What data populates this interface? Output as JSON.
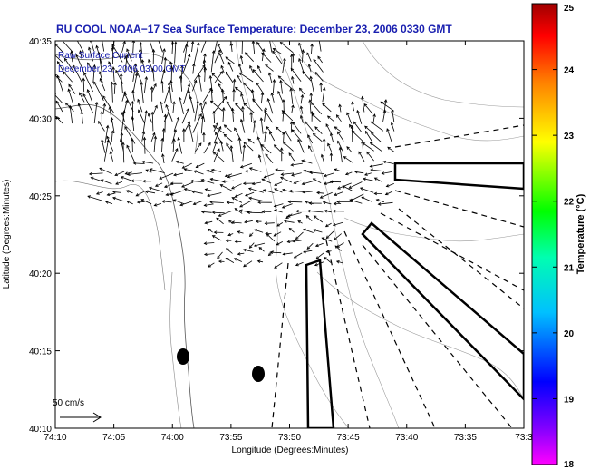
{
  "chart_data": {
    "type": "map",
    "title": "RU COOL  NOAA−17  Sea Surface Temperature:  December 23, 2006 0330 GMT",
    "overlay_title": "Raw Surface Current",
    "overlay_time": "December 23, 2006 03:00 GMT",
    "xlabel": "Longitude (Degrees:Minutes)",
    "ylabel": "Latitude (Degrees:Minutes)",
    "x_ticks": [
      "74:10",
      "74:05",
      "74:00",
      "73:55",
      "73:50",
      "73:45",
      "73:40",
      "73:35",
      "73:3"
    ],
    "y_ticks": [
      "40:10",
      "40:15",
      "40:20",
      "40:25",
      "40:30",
      "40:35"
    ],
    "xlim": [
      -74.1667,
      -73.5
    ],
    "ylim": [
      40.1667,
      40.5833
    ],
    "colorbar": {
      "label": "Temperature (°C)",
      "ticks": [
        "18",
        "19",
        "20",
        "21",
        "22",
        "23",
        "24",
        "25"
      ],
      "range": [
        18,
        25
      ]
    },
    "scale_arrow_label": "50 cm/s",
    "buoys": [
      {
        "name": "buoy-west",
        "lon": -73.9833,
        "lat": 40.2417
      },
      {
        "name": "buoy-east",
        "lon": -73.8708,
        "lat": 40.2258
      }
    ],
    "grid": false
  }
}
